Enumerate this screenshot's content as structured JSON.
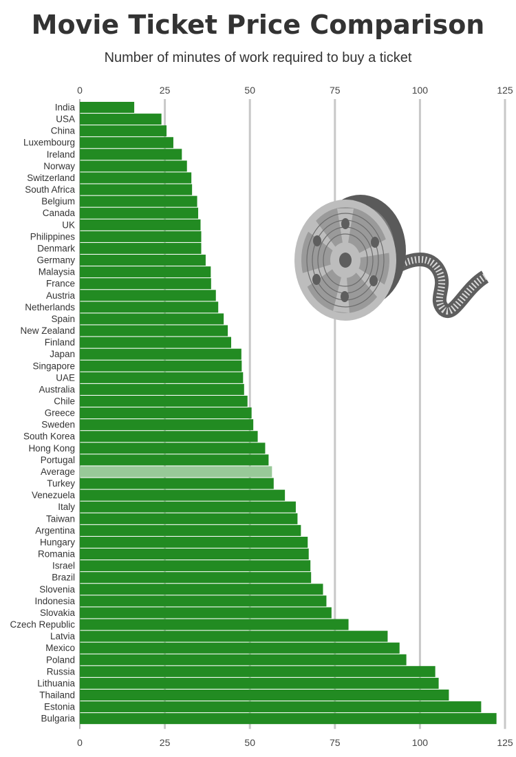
{
  "title": "Movie Ticket Price Comparison",
  "subtitle": "Number of minutes of work required to buy a ticket",
  "colors": {
    "bar": "#228b22",
    "highlight": "#98c998",
    "grid": "#c8c8c8",
    "axis": "#999999"
  },
  "chart_data": {
    "type": "bar",
    "orientation": "horizontal",
    "title": "Movie Ticket Price Comparison",
    "subtitle": "Number of minutes of work required to buy a ticket",
    "xlim": [
      0,
      125
    ],
    "xticks": [
      0,
      25,
      50,
      75,
      100,
      125
    ],
    "tick_positions": "top and bottom",
    "grid": true,
    "highlight_category": "Average",
    "categories": [
      "India",
      "USA",
      "China",
      "Luxembourg",
      "Ireland",
      "Norway",
      "Switzerland",
      "South Africa",
      "Belgium",
      "Canada",
      "UK",
      "Philippines",
      "Denmark",
      "Germany",
      "Malaysia",
      "France",
      "Austria",
      "Netherlands",
      "Spain",
      "New Zealand",
      "Finland",
      "Japan",
      "Singapore",
      "UAE",
      "Australia",
      "Chile",
      "Greece",
      "Sweden",
      "South Korea",
      "Hong Kong",
      "Portugal",
      "Average",
      "Turkey",
      "Venezuela",
      "Italy",
      "Taiwan",
      "Argentina",
      "Hungary",
      "Romania",
      "Israel",
      "Brazil",
      "Slovenia",
      "Indonesia",
      "Slovakia",
      "Czech Republic",
      "Latvia",
      "Mexico",
      "Poland",
      "Russia",
      "Lithuania",
      "Thailand",
      "Estonia",
      "Bulgaria"
    ],
    "values": [
      16,
      24,
      25.5,
      27.5,
      30,
      31.5,
      32.8,
      33,
      34.5,
      34.8,
      35.5,
      35.7,
      35.7,
      37,
      38.5,
      38.6,
      40,
      40.7,
      42.3,
      43.5,
      44.5,
      47.5,
      47.6,
      48,
      48.3,
      49.3,
      50.5,
      51,
      52.3,
      54.5,
      55.5,
      56.5,
      57,
      60.3,
      63.5,
      64,
      65,
      67,
      67.3,
      67.8,
      68,
      71.5,
      72.5,
      74,
      79,
      90.5,
      94,
      96,
      104.5,
      105.5,
      108.5,
      118,
      122.5
    ]
  }
}
